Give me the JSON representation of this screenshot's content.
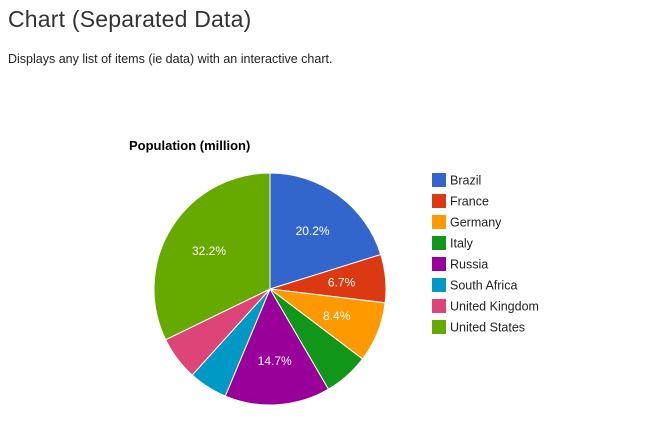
{
  "page": {
    "title": "Chart (Separated Data)",
    "description": "Displays any list of items (ie data) with an interactive chart."
  },
  "chart_data": {
    "type": "pie",
    "title": "Population (million)",
    "legend_position": "right",
    "categories": [
      "Brazil",
      "France",
      "Germany",
      "Italy",
      "Russia",
      "South Africa",
      "United Kingdom",
      "United States"
    ],
    "values": [
      20.2,
      6.7,
      8.4,
      6.3,
      14.7,
      5.4,
      6.1,
      32.2
    ],
    "value_labels": [
      "20.2%",
      "6.7%",
      "8.4%",
      "",
      "14.7%",
      "",
      "",
      "32.2%"
    ],
    "colors": [
      "#3366cc",
      "#dc3912",
      "#ff9900",
      "#109618",
      "#990099",
      "#0099c6",
      "#dd4477",
      "#66aa00"
    ]
  }
}
